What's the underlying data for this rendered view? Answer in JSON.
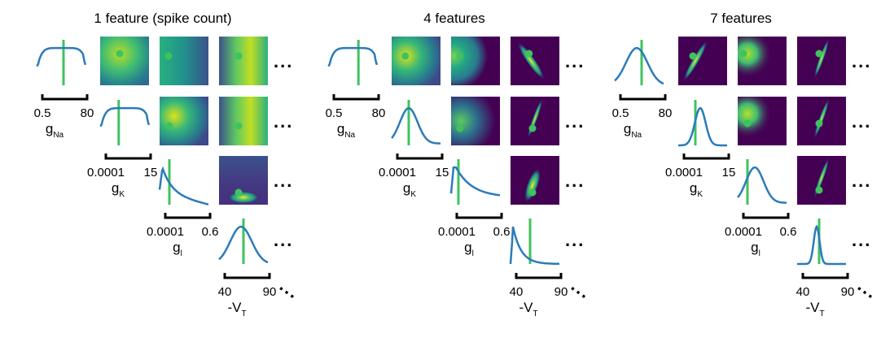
{
  "colors": {
    "marginal_line": "#2b7bba",
    "truth_marker": "#3fc35f",
    "heat_low": "#440154",
    "heat_high": "#fde725"
  },
  "params": [
    {
      "id": "gNa",
      "label_main": "g",
      "label_sub": "Na",
      "tick_min": "0.5",
      "tick_max": "80"
    },
    {
      "id": "gK",
      "label_main": "g",
      "label_sub": "K",
      "tick_min": "0.0001",
      "tick_max": "15"
    },
    {
      "id": "gl",
      "label_main": "g",
      "label_sub": "l",
      "tick_min": "0.0001",
      "tick_max": "0.6"
    },
    {
      "id": "VT",
      "label_main": "-V",
      "label_sub": "T",
      "tick_min": "40",
      "tick_max": "90"
    }
  ],
  "ellipsis": "...",
  "panels": [
    {
      "id": "p1",
      "title": "1 feature (spike count)"
    },
    {
      "id": "p4",
      "title": "4 features"
    },
    {
      "id": "p7",
      "title": "7 features"
    }
  ]
}
